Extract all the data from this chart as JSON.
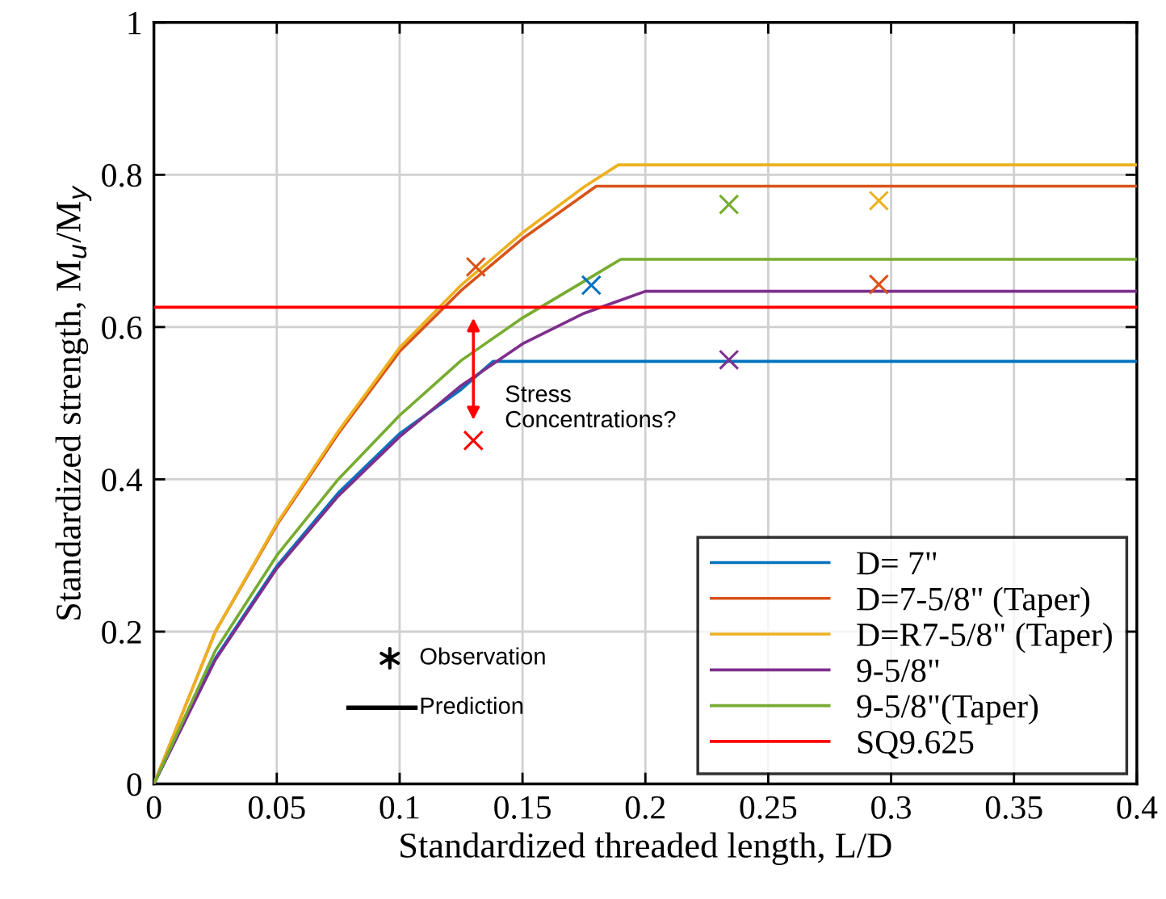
{
  "chart_data": {
    "type": "line",
    "xlabel": "Standardized threaded length, L/D",
    "ylabel": "Standardized strength, M$_{u}$/M$_{y}$",
    "xlim": [
      0,
      0.4
    ],
    "ylim": [
      0,
      1
    ],
    "xticks": [
      0,
      0.05,
      0.1,
      0.15,
      0.2,
      0.25,
      0.3,
      0.35,
      0.4
    ],
    "yticks": [
      0,
      0.2,
      0.4,
      0.6,
      0.8,
      1
    ],
    "grid": true,
    "legend": "bottom right",
    "line_style": "solid",
    "marker": "none",
    "series": [
      {
        "name": "D= 7\"",
        "color": "#0072bd",
        "x": [
          0,
          0.025,
          0.05,
          0.075,
          0.1,
          0.125,
          0.138,
          0.4
        ],
        "values": [
          0,
          0.165,
          0.286,
          0.382,
          0.46,
          0.518,
          0.555,
          0.555
        ]
      },
      {
        "name": "D=7-5/8\" (Taper)",
        "color": "#d95319",
        "x": [
          0,
          0.025,
          0.05,
          0.075,
          0.1,
          0.125,
          0.15,
          0.18,
          0.4
        ],
        "values": [
          0,
          0.2,
          0.34,
          0.46,
          0.568,
          0.648,
          0.716,
          0.785,
          0.785
        ]
      },
      {
        "name": "D=R7-5/8\" (Taper)",
        "color": "#edb120",
        "x": [
          0,
          0.025,
          0.05,
          0.075,
          0.1,
          0.125,
          0.15,
          0.175,
          0.189,
          0.4
        ],
        "values": [
          0,
          0.2,
          0.342,
          0.463,
          0.573,
          0.655,
          0.724,
          0.784,
          0.813,
          0.813
        ]
      },
      {
        "name": "9-5/8\"",
        "color": "#7e2f8e",
        "x": [
          0,
          0.025,
          0.05,
          0.075,
          0.1,
          0.125,
          0.15,
          0.175,
          0.2,
          0.4
        ],
        "values": [
          0,
          0.163,
          0.283,
          0.378,
          0.456,
          0.523,
          0.578,
          0.618,
          0.647,
          0.647
        ]
      },
      {
        "name": "9-5/8\"(Taper)",
        "color": "#77ac30",
        "x": [
          0,
          0.025,
          0.05,
          0.075,
          0.1,
          0.125,
          0.15,
          0.175,
          0.19,
          0.4
        ],
        "values": [
          0,
          0.175,
          0.3,
          0.4,
          0.484,
          0.556,
          0.612,
          0.66,
          0.689,
          0.689
        ]
      },
      {
        "name": "SQ9.625",
        "color": "#ff0000",
        "x": [
          0,
          0.4
        ],
        "values": [
          0.626,
          0.626
        ]
      },
      {
        "type": "scatter",
        "marker": "cross",
        "color": "#0072bd",
        "x": [
          0.178
        ],
        "values": [
          0.655
        ]
      },
      {
        "type": "scatter",
        "marker": "cross",
        "color": "#d95319",
        "x": [
          0.131,
          0.295
        ],
        "values": [
          0.679,
          0.656
        ]
      },
      {
        "type": "scatter",
        "marker": "cross",
        "color": "#edb120",
        "x": [
          0.295
        ],
        "values": [
          0.766
        ]
      },
      {
        "type": "scatter",
        "marker": "cross",
        "color": "#7e2f8e",
        "x": [
          0.234
        ],
        "values": [
          0.557
        ]
      },
      {
        "type": "scatter",
        "marker": "cross",
        "color": "#77ac30",
        "x": [
          0.234
        ],
        "values": [
          0.761
        ]
      },
      {
        "type": "scatter",
        "marker": "cross",
        "color": "#ff0000",
        "x": [
          0.13
        ],
        "values": [
          0.451
        ]
      }
    ],
    "annotations": [
      "Stress\nConcentrations?",
      "Observation",
      "Prediction"
    ]
  }
}
